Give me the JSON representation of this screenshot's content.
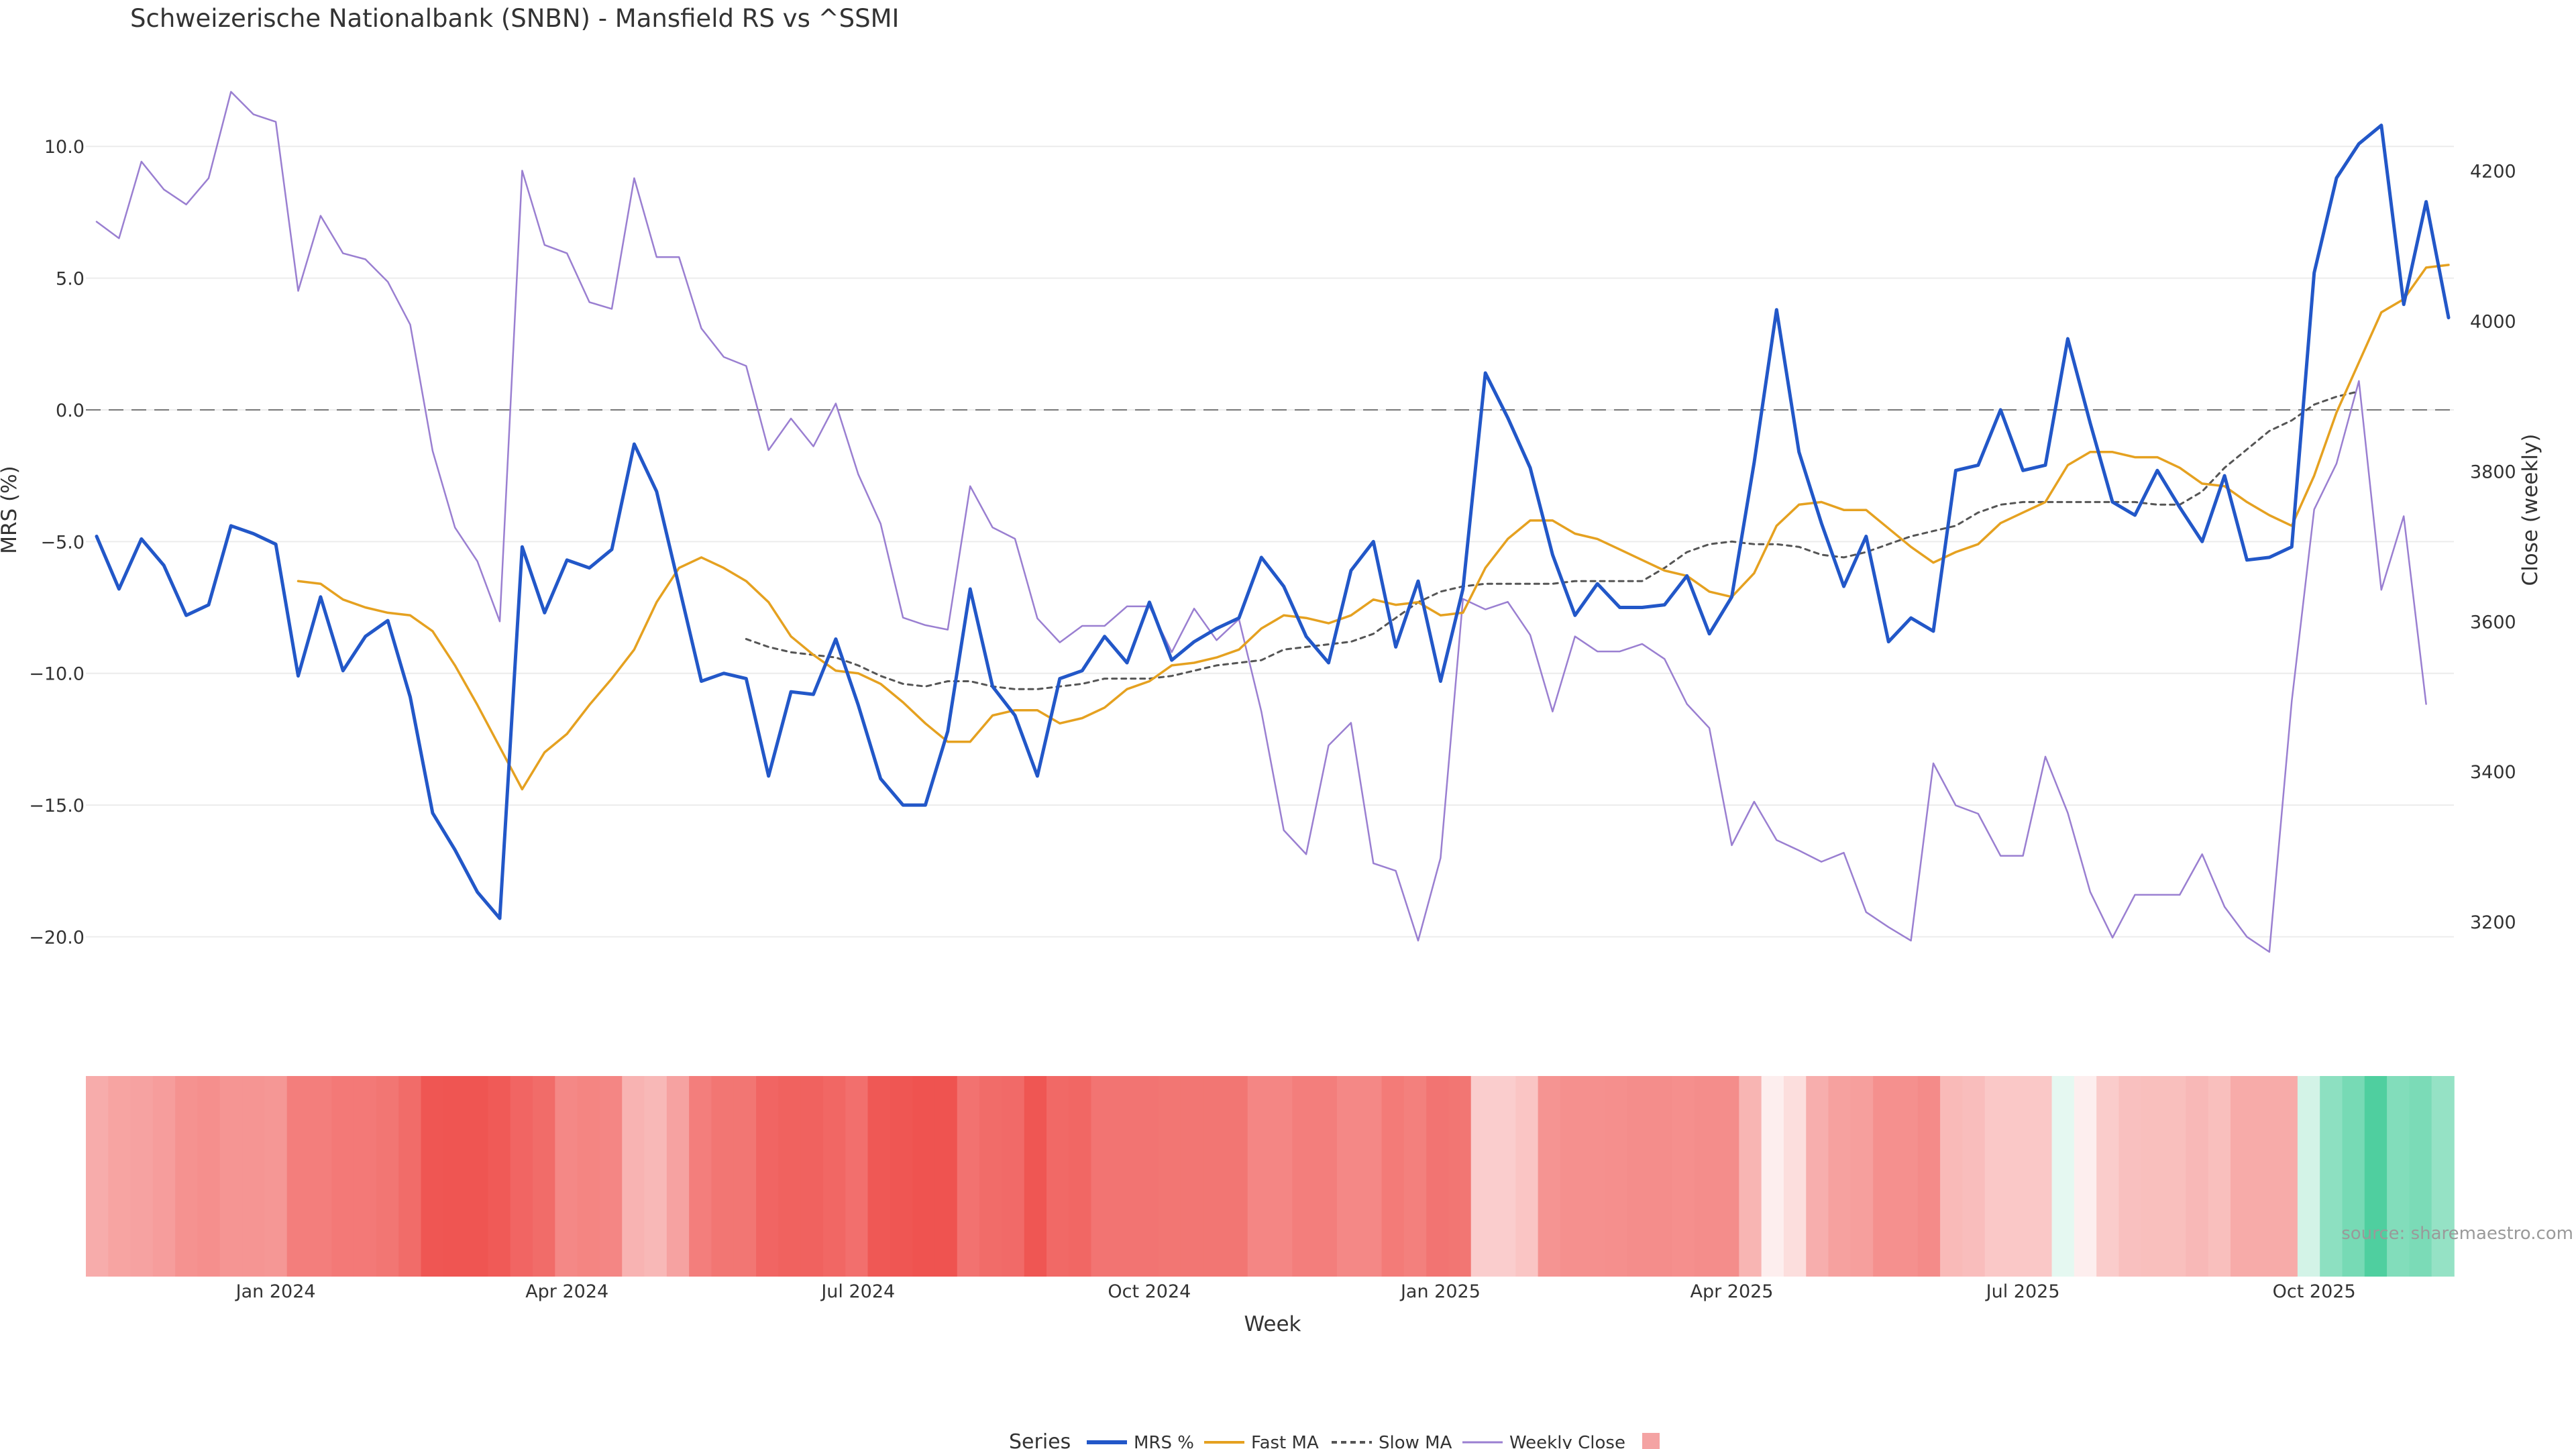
{
  "chart_data": {
    "type": "line",
    "title": "Schweizerische Nationalbank (SNBN) - Mansfield RS vs ^SSMI",
    "xlabel": "Week",
    "ylabel": "MRS (%)",
    "y2label": "Close (weekly)",
    "ylim": [
      -22,
      12.5
    ],
    "y2lim": [
      3110,
      4320
    ],
    "yticks": [
      10,
      5,
      0,
      -5,
      -10,
      -15,
      -20
    ],
    "ytick_labels": [
      "10.0",
      "5.0",
      "0.0",
      "−5.0",
      "−10.0",
      "−15.0",
      "−20.0"
    ],
    "y2ticks": [
      4200,
      4000,
      3800,
      3600,
      3400,
      3200
    ],
    "y2tick_labels": [
      "4200",
      "4000",
      "3800",
      "3600",
      "3400",
      "3200"
    ],
    "x_start_index": 0,
    "x_end_index": 105,
    "xticks": [
      {
        "index": 8,
        "label": "Jan 2024"
      },
      {
        "index": 21,
        "label": "Apr 2024"
      },
      {
        "index": 34,
        "label": "Jul 2024"
      },
      {
        "index": 47,
        "label": "Oct 2024"
      },
      {
        "index": 60,
        "label": "Jan 2025"
      },
      {
        "index": 73,
        "label": "Apr 2025"
      },
      {
        "index": 86,
        "label": "Jul 2025"
      },
      {
        "index": 99,
        "label": "Oct 2025"
      }
    ],
    "zero_line": 0,
    "legend_title": "Series",
    "legend_position": "bottom-center",
    "source_note": "source: sharemaestro.com",
    "series": [
      {
        "name": "MRS %",
        "color": "#2257c8",
        "axis": "left",
        "values": [
          -4.8,
          -6.8,
          -4.9,
          -5.9,
          -7.8,
          -7.4,
          -4.4,
          -4.7,
          -5.1,
          -10.1,
          -7.1,
          -9.9,
          -8.6,
          -8.0,
          -10.9,
          -15.3,
          -16.7,
          -18.3,
          -19.3,
          -5.2,
          -7.7,
          -5.7,
          -6.0,
          -5.3,
          -1.3,
          -3.1,
          -6.7,
          -10.3,
          -10.0,
          -10.2,
          -13.9,
          -10.7,
          -10.8,
          -8.7,
          -11.2,
          -14.0,
          -15.0,
          -15.0,
          -12.2,
          -6.8,
          -10.5,
          -11.6,
          -13.9,
          -10.2,
          -9.9,
          -8.6,
          -9.6,
          -7.3,
          -9.5,
          -8.8,
          -8.3,
          -7.9,
          -5.6,
          -6.7,
          -8.6,
          -9.6,
          -6.1,
          -5.0,
          -9.0,
          -6.5,
          -10.3,
          -6.8,
          1.4,
          -0.3,
          -2.2,
          -5.5,
          -7.8,
          -6.6,
          -7.5,
          -7.5,
          -7.4,
          -6.3,
          -8.5,
          -7.1,
          -2.0,
          3.8,
          -1.6,
          -4.3,
          -6.7,
          -4.8,
          -8.8,
          -7.9,
          -8.4,
          -2.3,
          -2.1,
          0.0,
          -2.3,
          -2.1,
          2.7,
          -0.5,
          -3.5,
          -4.0,
          -2.3,
          -3.7,
          -5.0,
          -2.5,
          -5.7,
          -5.6,
          -5.2,
          5.2,
          8.8,
          10.1,
          10.8,
          4.0,
          7.9,
          3.5
        ]
      },
      {
        "name": "Fast MA",
        "color": "#e5a120",
        "axis": "left",
        "start_index": 9,
        "values": [
          -6.5,
          -6.6,
          -7.2,
          -7.5,
          -7.7,
          -7.8,
          -8.4,
          -9.7,
          -11.2,
          -12.8,
          -14.4,
          -13.0,
          -12.3,
          -11.2,
          -10.2,
          -9.1,
          -7.3,
          -6.0,
          -5.6,
          -6.0,
          -6.5,
          -7.3,
          -8.6,
          -9.3,
          -9.9,
          -10.0,
          -10.4,
          -11.1,
          -11.9,
          -12.6,
          -12.6,
          -11.6,
          -11.4,
          -11.4,
          -11.9,
          -11.7,
          -11.3,
          -10.6,
          -10.3,
          -9.7,
          -9.6,
          -9.4,
          -9.1,
          -8.3,
          -7.8,
          -7.9,
          -8.1,
          -7.8,
          -7.2,
          -7.4,
          -7.3,
          -7.8,
          -7.7,
          -6.0,
          -4.9,
          -4.2,
          -4.2,
          -4.7,
          -4.9,
          -5.3,
          -5.7,
          -6.1,
          -6.3,
          -6.9,
          -7.1,
          -6.2,
          -4.4,
          -3.6,
          -3.5,
          -3.8,
          -3.8,
          -4.5,
          -5.2,
          -5.8,
          -5.4,
          -5.1,
          -4.3,
          -3.9,
          -3.5,
          -2.1,
          -1.6,
          -1.6,
          -1.8,
          -1.8,
          -2.2,
          -2.8,
          -2.9,
          -3.5,
          -4.0,
          -4.4,
          -2.5,
          -0.1,
          1.8,
          3.7,
          4.2,
          5.4,
          5.5
        ]
      },
      {
        "name": "Slow MA",
        "color": "#555555",
        "axis": "left",
        "dash": true,
        "start_index": 29,
        "values": [
          -8.7,
          -9.0,
          -9.2,
          -9.3,
          -9.4,
          -9.7,
          -10.1,
          -10.4,
          -10.5,
          -10.3,
          -10.3,
          -10.5,
          -10.6,
          -10.6,
          -10.5,
          -10.4,
          -10.2,
          -10.2,
          -10.2,
          -10.1,
          -9.9,
          -9.7,
          -9.6,
          -9.5,
          -9.1,
          -9.0,
          -8.9,
          -8.8,
          -8.5,
          -7.9,
          -7.3,
          -6.9,
          -6.7,
          -6.6,
          -6.6,
          -6.6,
          -6.6,
          -6.5,
          -6.5,
          -6.5,
          -6.5,
          -6.0,
          -5.4,
          -5.1,
          -5.0,
          -5.1,
          -5.1,
          -5.2,
          -5.5,
          -5.6,
          -5.4,
          -5.1,
          -4.8,
          -4.6,
          -4.4,
          -3.9,
          -3.6,
          -3.5,
          -3.5,
          -3.5,
          -3.5,
          -3.5,
          -3.5,
          -3.6,
          -3.6,
          -3.1,
          -2.2,
          -1.5,
          -0.8,
          -0.4,
          0.2,
          0.5,
          0.7
        ]
      },
      {
        "name": "Weekly Close",
        "color": "#9a7fd1",
        "axis": "right",
        "values": [
          4132,
          4110,
          4212,
          4175,
          4155,
          4190,
          4305,
          4275,
          4265,
          4040,
          4140,
          4090,
          4082,
          4052,
          3995,
          3827,
          3725,
          3680,
          3600,
          4200,
          4101,
          4090,
          4025,
          4016,
          4190,
          4085,
          4085,
          3990,
          3952,
          3940,
          3828,
          3870,
          3833,
          3890,
          3796,
          3730,
          3605,
          3595,
          3589,
          3780,
          3725,
          3710,
          3604,
          3572,
          3594,
          3594,
          3620,
          3620,
          3559,
          3617,
          3575,
          3603,
          3480,
          3322,
          3290,
          3435,
          3465,
          3278,
          3268,
          3175,
          3285,
          3630,
          3616,
          3626,
          3582,
          3480,
          3580,
          3560,
          3560,
          3570,
          3550,
          3490,
          3458,
          3302,
          3360,
          3309,
          3295,
          3280,
          3292,
          3213,
          3193,
          3175,
          3411,
          3355,
          3344,
          3288,
          3288,
          3420,
          3345,
          3240,
          3179,
          3236,
          3236,
          3236,
          3290,
          3220,
          3180,
          3160,
          3494,
          3749,
          3810,
          3920,
          3642,
          3740,
          3490
        ]
      }
    ],
    "heatmap_strip": {
      "description": "weekly relative-strength colour band",
      "values": [
        -5.0,
        -5.5,
        -5.6,
        -5.9,
        -6.6,
        -6.8,
        -6.4,
        -6.4,
        -6.3,
        -7.8,
        -7.8,
        -8.1,
        -8.1,
        -8.3,
        -8.9,
        -10.2,
        -10.3,
        -10.3,
        -10.0,
        -9.3,
        -8.9,
        -7.2,
        -7.4,
        -7.3,
        -4.6,
        -4.3,
        -5.6,
        -7.8,
        -8.3,
        -8.3,
        -9.3,
        -9.5,
        -9.5,
        -9.2,
        -8.7,
        -10.1,
        -10.2,
        -10.4,
        -10.6,
        -8.5,
        -8.9,
        -9.0,
        -10.2,
        -9.1,
        -9.2,
        -8.4,
        -8.4,
        -8.4,
        -8.3,
        -8.3,
        -8.3,
        -8.3,
        -7.3,
        -7.3,
        -7.8,
        -7.8,
        -7.2,
        -7.2,
        -8.0,
        -7.7,
        -8.4,
        -8.3,
        -3.0,
        -3.0,
        -3.5,
        -6.5,
        -6.7,
        -6.7,
        -6.8,
        -6.9,
        -6.9,
        -6.8,
        -6.9,
        -6.9,
        -4.5,
        -1.0,
        -2.0,
        -4.9,
        -5.7,
        -5.8,
        -6.7,
        -6.7,
        -7.0,
        -4.2,
        -4.0,
        -3.3,
        -3.3,
        -3.3,
        1.2,
        -1.0,
        -3.1,
        -3.8,
        -3.9,
        -3.9,
        -4.3,
        -3.9,
        -5.1,
        -5.1,
        -5.1,
        2.0,
        5.2,
        6.2,
        8.0,
        5.7,
        6.0,
        4.8
      ]
    }
  },
  "colors": {
    "mrs": "#2257c8",
    "fast_ma": "#e5a120",
    "slow_ma": "#555555",
    "weekly_close": "#9a7fd1",
    "heat_negative": "#ef5350",
    "heat_positive": "#4fcf9f",
    "heat_neutral": "#ffffff",
    "legend_swatch": "#f4a3a3"
  }
}
